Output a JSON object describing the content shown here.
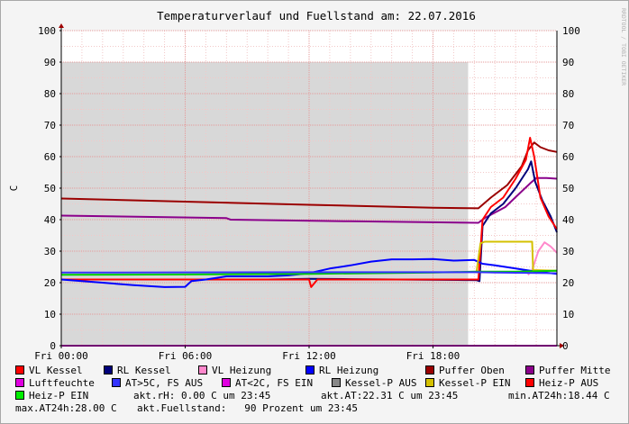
{
  "chart_data": {
    "type": "line",
    "title": "Temperaturverlauf und Fuellstand am: 22.07.2016",
    "ylabel": "C",
    "watermark": "RRDTOOL / TOBI OETIKER",
    "ylim": [
      0,
      100
    ],
    "y_ticks": [
      "0",
      "10",
      "20",
      "30",
      "40",
      "50",
      "60",
      "70",
      "80",
      "90",
      "100"
    ],
    "x_range_hours": [
      0,
      24
    ],
    "x_ticks": [
      {
        "hour": 0,
        "label": "Fri 00:00"
      },
      {
        "hour": 6,
        "label": "Fri 06:00"
      },
      {
        "hour": 12,
        "label": "Fri 12:00"
      },
      {
        "hour": 18,
        "label": "Fri 18:00"
      }
    ],
    "fill_area": {
      "name": "Fuellstand",
      "value": 90,
      "x_start": 0,
      "x_end": 19.7,
      "color": "#d8d8d8"
    },
    "series": [
      {
        "name": "Puffer Oben",
        "color": "#9a0000",
        "points": [
          [
            0,
            46.7
          ],
          [
            6,
            45.7
          ],
          [
            12,
            44.7
          ],
          [
            18,
            43.8
          ],
          [
            20.2,
            43.6
          ],
          [
            20.8,
            47
          ],
          [
            21.6,
            51
          ],
          [
            22.3,
            57
          ],
          [
            22.6,
            62
          ],
          [
            22.9,
            64.5
          ],
          [
            23.2,
            63
          ],
          [
            23.6,
            62
          ],
          [
            24,
            61.5
          ]
        ]
      },
      {
        "name": "Puffer Mitte",
        "color": "#8b008b",
        "points": [
          [
            0,
            41.3
          ],
          [
            8,
            40.5
          ],
          [
            8.2,
            40
          ],
          [
            14,
            39.5
          ],
          [
            20.2,
            39
          ],
          [
            20.5,
            40.5
          ],
          [
            21.5,
            44
          ],
          [
            22.3,
            49
          ],
          [
            22.7,
            51.5
          ],
          [
            23,
            53.2
          ],
          [
            23.5,
            53.2
          ],
          [
            24,
            53
          ]
        ]
      },
      {
        "name": "RL Kessel",
        "color": "#00007a",
        "points": [
          [
            0,
            21
          ],
          [
            10,
            21
          ],
          [
            12,
            21.2
          ],
          [
            14,
            21.1
          ],
          [
            20.1,
            20.8
          ],
          [
            20.25,
            20.5
          ],
          [
            20.4,
            38
          ],
          [
            20.8,
            42
          ],
          [
            21.4,
            45
          ],
          [
            22,
            50
          ],
          [
            22.6,
            56
          ],
          [
            22.75,
            58.5
          ],
          [
            22.95,
            52
          ],
          [
            23.3,
            46
          ],
          [
            23.7,
            41
          ],
          [
            24,
            36
          ]
        ]
      },
      {
        "name": "VL Kessel",
        "color": "#ff0000",
        "points": [
          [
            0,
            21
          ],
          [
            10,
            21
          ],
          [
            12,
            21
          ],
          [
            12.1,
            18.6
          ],
          [
            12.4,
            21
          ],
          [
            20.2,
            21
          ],
          [
            20.4,
            40
          ],
          [
            20.8,
            44
          ],
          [
            21.4,
            47
          ],
          [
            22,
            53
          ],
          [
            22.5,
            59
          ],
          [
            22.7,
            66
          ],
          [
            22.9,
            60
          ],
          [
            23.2,
            47
          ],
          [
            23.6,
            41
          ],
          [
            24,
            37
          ]
        ]
      },
      {
        "name": "VL Heizung",
        "color": "#ff88cc",
        "points": [
          [
            22.6,
            22.5
          ],
          [
            22.8,
            24
          ],
          [
            23.1,
            30
          ],
          [
            23.4,
            32.8
          ],
          [
            23.7,
            31.5
          ],
          [
            24,
            29.5
          ]
        ]
      },
      {
        "name": "RL Heizung",
        "color": "#0000ff",
        "points": [
          [
            0,
            21
          ],
          [
            2,
            20
          ],
          [
            3.5,
            19.2
          ],
          [
            5,
            18.6
          ],
          [
            6,
            18.7
          ],
          [
            6.3,
            20.5
          ],
          [
            7,
            21
          ],
          [
            8,
            22
          ],
          [
            10,
            22
          ],
          [
            11,
            22.3
          ],
          [
            12,
            23
          ],
          [
            13,
            24.5
          ],
          [
            14,
            25.5
          ],
          [
            15,
            26.7
          ],
          [
            16,
            27.4
          ],
          [
            17,
            27.4
          ],
          [
            18,
            27.5
          ],
          [
            19,
            27
          ],
          [
            20,
            27.2
          ],
          [
            20.4,
            26
          ],
          [
            21,
            25.5
          ],
          [
            22,
            24.5
          ],
          [
            23,
            23.5
          ],
          [
            24,
            22.8
          ]
        ]
      },
      {
        "name": "Kessel-P EIN",
        "color": "#d4c000",
        "points": [
          [
            20.1,
            23
          ],
          [
            20.3,
            32.5
          ],
          [
            20.5,
            33
          ],
          [
            22.8,
            33
          ],
          [
            22.85,
            24
          ],
          [
            24,
            23.8
          ]
        ]
      },
      {
        "name": "Heiz-P EIN",
        "color": "#00cc00",
        "points": [
          [
            0,
            22.5
          ],
          [
            6,
            22.6
          ],
          [
            12,
            22.8
          ],
          [
            18,
            23.2
          ],
          [
            20,
            23.5
          ],
          [
            22,
            23.5
          ],
          [
            24,
            23.8
          ]
        ]
      },
      {
        "name": "AT>5C, FS AUS",
        "color": "#3333ff",
        "points": [
          [
            0,
            23.2
          ],
          [
            12,
            23.3
          ],
          [
            20.2,
            23.3
          ],
          [
            21,
            23.2
          ],
          [
            24,
            23
          ]
        ]
      },
      {
        "name": "Luftfeuchte",
        "color": "#e000e0",
        "points": [
          [
            0,
            0
          ],
          [
            24,
            0
          ]
        ]
      }
    ],
    "legend": [
      {
        "name": "VL Kessel",
        "color": "#ff0000"
      },
      {
        "name": "RL Kessel",
        "color": "#00007a"
      },
      {
        "name": "VL Heizung",
        "color": "#ff88cc"
      },
      {
        "name": "RL Heizung",
        "color": "#0000ff"
      },
      {
        "name": "Puffer Oben",
        "color": "#9a0000"
      },
      {
        "name": "Puffer Mitte",
        "color": "#8b008b"
      },
      {
        "name": "Luftfeuchte",
        "color": "#e000e0"
      },
      {
        "name": "AT>5C, FS AUS",
        "color": "#3333ff"
      },
      {
        "name": "AT<2C, FS EIN",
        "color": "#e000e0"
      },
      {
        "name": "Kessel-P AUS",
        "color": "#888888"
      },
      {
        "name": "Kessel-P EIN",
        "color": "#d4c000"
      },
      {
        "name": "Heiz-P AUS",
        "color": "#ff0000"
      },
      {
        "name": "Heiz-P EIN",
        "color": "#00ee00"
      }
    ],
    "stats": {
      "rh": "akt.rH: 0.00 C um 23:45",
      "at": "akt.AT:22.31 C um 23:45",
      "min": "min.AT24h:18.44 C",
      "max": "max.AT24h:28.00 C",
      "fuellstand": "akt.Fuellstand:   90 Prozent um 23:45"
    }
  }
}
